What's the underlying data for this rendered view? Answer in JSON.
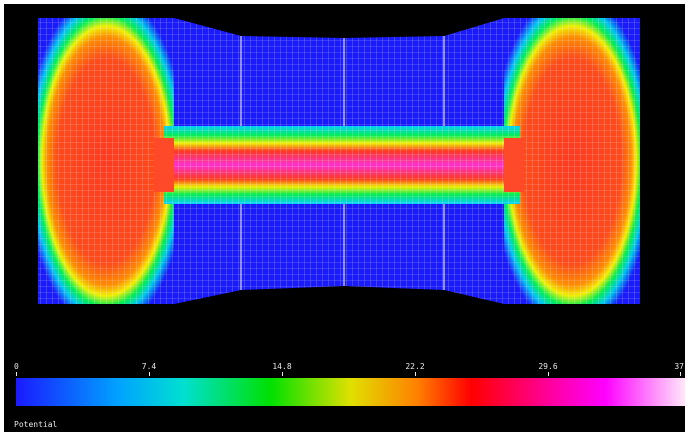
{
  "figure": {
    "legend_title": "Potential",
    "colorbar": {
      "min": 0,
      "max": 37,
      "ticks": [
        "0",
        "7.4",
        "14.8",
        "22.2",
        "29.6",
        "37"
      ],
      "colormap_stops": [
        "#1a1aff",
        "#00d0e0",
        "#00e000",
        "#e0e000",
        "#ff8000",
        "#ff0000",
        "#ff00ff",
        "#ffe0ff"
      ]
    },
    "field_colors": {
      "low": "#1a1aff",
      "edge_green": "#00ee55",
      "edge_yellow": "#f0f000",
      "high": "#ff3320",
      "peak": "#ff30d0",
      "mesh_line": "#ffffff",
      "background": "#000000"
    }
  }
}
